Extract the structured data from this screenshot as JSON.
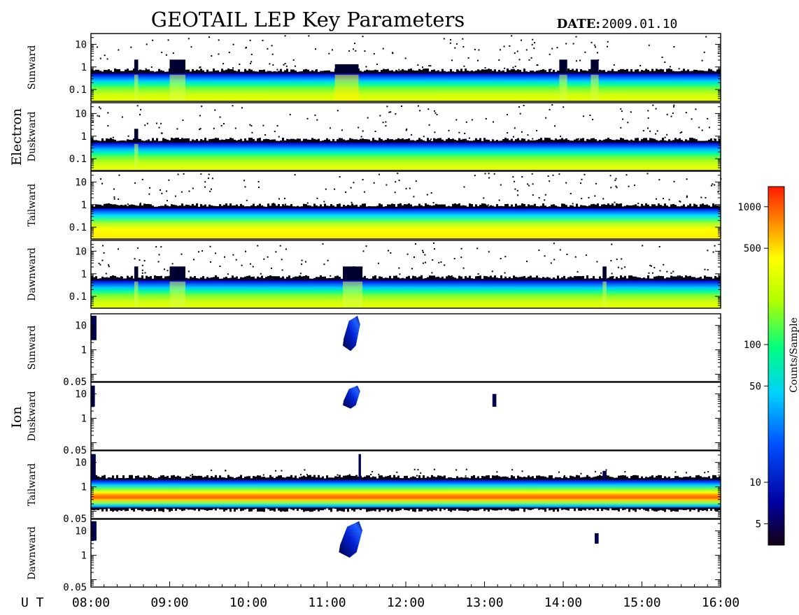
{
  "title": "GEOTAIL LEP Key Parameters",
  "date_label": "DATE:",
  "date_value": "2009.01.10",
  "ut_label": "U T",
  "colorbar": {
    "label": "Counts/Sample",
    "scale": "log",
    "range": [
      3.5,
      1400
    ],
    "ticks": [
      "1000",
      "500",
      "100",
      "50",
      "10",
      "5"
    ],
    "tick_values": [
      1000,
      500,
      100,
      50,
      10,
      5
    ]
  },
  "groups": [
    {
      "name": "Electron",
      "panels": [
        "Sunward",
        "Duskward",
        "Tailward",
        "Dawnward"
      ]
    },
    {
      "name": "Ion",
      "panels": [
        "Sunward",
        "Duskward",
        "Tailward",
        "Dawnward"
      ]
    }
  ],
  "chart_data": {
    "type": "heatmap",
    "title": "GEOTAIL LEP Key Parameters",
    "date": "2009.01.10",
    "x_axis": {
      "label": "U T",
      "range": [
        "08:00",
        "16:00"
      ],
      "tick_labels": [
        "08:00",
        "09:00",
        "10:00",
        "11:00",
        "12:00",
        "13:00",
        "14:00",
        "15:00",
        "16:00"
      ],
      "tick_hours": [
        8,
        9,
        10,
        11,
        12,
        13,
        14,
        15,
        16
      ]
    },
    "y_axis": {
      "scale": "log",
      "electron": {
        "range": [
          0.03,
          30
        ],
        "tick_labels": [
          "10",
          "1",
          "0.1"
        ],
        "tick_values": [
          10,
          1,
          0.1
        ]
      },
      "ion": {
        "range": [
          0.05,
          30
        ],
        "tick_labels": [
          "10",
          "1",
          "0.05"
        ],
        "tick_values": [
          10,
          1,
          0.05
        ]
      }
    },
    "panels": [
      {
        "species": "Electron",
        "direction": "Sunward",
        "band_y": [
          0.03,
          0.6
        ],
        "intensity": "steady",
        "enhancements": [
          {
            "t": [
              8.55,
              8.6
            ]
          },
          {
            "t": [
              9.0,
              9.2
            ]
          },
          {
            "t": [
              11.1,
              11.4
            ],
            "intensity": "high"
          },
          {
            "t": [
              13.95,
              14.05
            ]
          },
          {
            "t": [
              14.35,
              14.45
            ]
          }
        ]
      },
      {
        "species": "Electron",
        "direction": "Duskward",
        "band_y": [
          0.03,
          0.6
        ],
        "intensity": "steady",
        "enhancements": [
          {
            "t": [
              8.55,
              8.6
            ]
          }
        ]
      },
      {
        "species": "Electron",
        "direction": "Tailward",
        "band_y": [
          0.03,
          0.8
        ],
        "intensity": "high",
        "enhancements": []
      },
      {
        "species": "Electron",
        "direction": "Dawnward",
        "band_y": [
          0.03,
          0.6
        ],
        "intensity": "steady",
        "enhancements": [
          {
            "t": [
              8.55,
              8.6
            ]
          },
          {
            "t": [
              9.0,
              9.2
            ]
          },
          {
            "t": [
              11.2,
              11.45
            ]
          },
          {
            "t": [
              14.5,
              14.55
            ]
          }
        ]
      },
      {
        "species": "Ion",
        "direction": "Sunward",
        "band_y": null,
        "patches": [
          {
            "t": [
              8.0,
              8.07
            ],
            "y": [
              2.5,
              25
            ]
          },
          {
            "t": [
              11.2,
              11.42
            ],
            "y": [
              0.9,
              25
            ]
          }
        ]
      },
      {
        "species": "Ion",
        "direction": "Duskward",
        "band_y": null,
        "patches": [
          {
            "t": [
              8.0,
              8.05
            ],
            "y": [
              3,
              22
            ]
          },
          {
            "t": [
              11.2,
              11.42
            ],
            "y": [
              2.5,
              22
            ]
          },
          {
            "t": [
              13.1,
              13.15
            ],
            "y": [
              3,
              10
            ]
          }
        ]
      },
      {
        "species": "Ion",
        "direction": "Tailward",
        "band_y": [
          0.13,
          2.2
        ],
        "intensity": "high",
        "patches": [
          {
            "t": [
              8.0,
              8.06
            ],
            "y": [
              2,
              22
            ]
          },
          {
            "t": [
              11.4,
              11.43
            ],
            "y": [
              2,
              22
            ]
          },
          {
            "t": [
              14.5,
              14.55
            ],
            "y": [
              2,
              4.5
            ]
          }
        ]
      },
      {
        "species": "Ion",
        "direction": "Dawnward",
        "band_y": null,
        "patches": [
          {
            "t": [
              8.0,
              8.07
            ],
            "y": [
              4,
              25
            ]
          },
          {
            "t": [
              11.15,
              11.45
            ],
            "y": [
              0.8,
              25
            ]
          },
          {
            "t": [
              14.4,
              14.45
            ],
            "y": [
              3,
              8
            ]
          }
        ]
      }
    ]
  }
}
